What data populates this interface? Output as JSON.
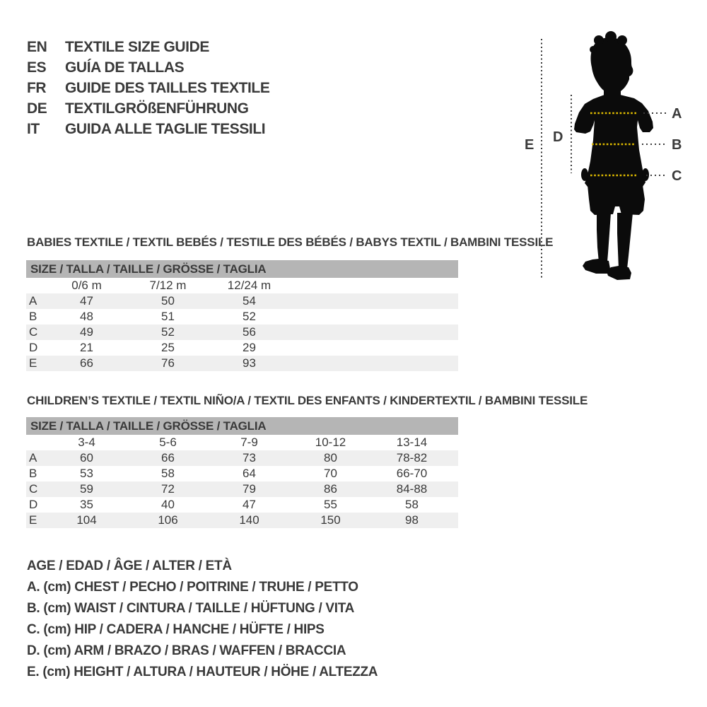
{
  "page": {
    "background": "#ffffff",
    "text_color": "#3a3a3a"
  },
  "language_guide": {
    "items": [
      {
        "code": "EN",
        "label": "TEXTILE SIZE GUIDE"
      },
      {
        "code": "ES",
        "label": "GUÍA DE TALLAS"
      },
      {
        "code": "FR",
        "label": "GUIDE DES TAILLES TEXTILE"
      },
      {
        "code": "DE",
        "label": "TEXTILGRÖßENFÜHRUNG"
      },
      {
        "code": "IT",
        "label": "GUIDA ALLE TAGLIE TESSILI"
      }
    ]
  },
  "figure": {
    "measure_labels": {
      "chest": "A",
      "waist": "B",
      "hip": "C",
      "arm": "D",
      "height": "E"
    },
    "accent_color": "#e2bd00",
    "silhouette_color": "#0b0b0b",
    "guide_color": "#3a3a3a"
  },
  "babies_table": {
    "title": "BABIES TEXTILE / TEXTIL BEBÉS / TESTILE DES BÉBÉS / BABYS TEXTIL / BAMBINI TESSILE",
    "header": "SIZE / TALLA / TAILLE / GRÖSSE / TAGLIA",
    "columns": [
      "0/6 m",
      "7/12 m",
      "12/24 m"
    ],
    "rows": [
      {
        "label": "A",
        "values": [
          "47",
          "50",
          "54"
        ]
      },
      {
        "label": "B",
        "values": [
          "48",
          "51",
          "52"
        ]
      },
      {
        "label": "C",
        "values": [
          "49",
          "52",
          "56"
        ]
      },
      {
        "label": "D",
        "values": [
          "21",
          "25",
          "29"
        ]
      },
      {
        "label": "E",
        "values": [
          "66",
          "76",
          "93"
        ]
      }
    ]
  },
  "children_table": {
    "title": "CHILDREN’S TEXTILE / TEXTIL NIÑO/A / TEXTIL DES ENFANTS / KINDERTEXTIL / BAMBINI TESSILE",
    "header": "SIZE / TALLA / TAILLE / GRÖSSE / TAGLIA",
    "columns": [
      "3-4",
      "5-6",
      "7-9",
      "10-12",
      "13-14"
    ],
    "rows": [
      {
        "label": "A",
        "values": [
          "60",
          "66",
          "73",
          "80",
          "78-82"
        ]
      },
      {
        "label": "B",
        "values": [
          "53",
          "58",
          "64",
          "70",
          "66-70"
        ]
      },
      {
        "label": "C",
        "values": [
          "59",
          "72",
          "79",
          "86",
          "84-88"
        ]
      },
      {
        "label": "D",
        "values": [
          "35",
          "40",
          "47",
          "55",
          "58"
        ]
      },
      {
        "label": "E",
        "values": [
          "104",
          "106",
          "140",
          "150",
          "98"
        ]
      }
    ]
  },
  "legend": {
    "lines": [
      "AGE / EDAD / ÂGE / ALTER / ETÀ",
      "A. (cm) CHEST / PECHO / POITRINE / TRUHE / PETTO",
      "B. (cm) WAIST / CINTURA / TAILLE / HÜFTUNG / VITA",
      "C. (cm) HIP / CADERA / HANCHE / HÜFTE / HIPS",
      "D. (cm) ARM / BRAZO / BRAS / WAFFEN / BRACCIA",
      "E. (cm) HEIGHT / ALTURA / HAUTEUR / HÖHE / ALTEZZA"
    ]
  }
}
